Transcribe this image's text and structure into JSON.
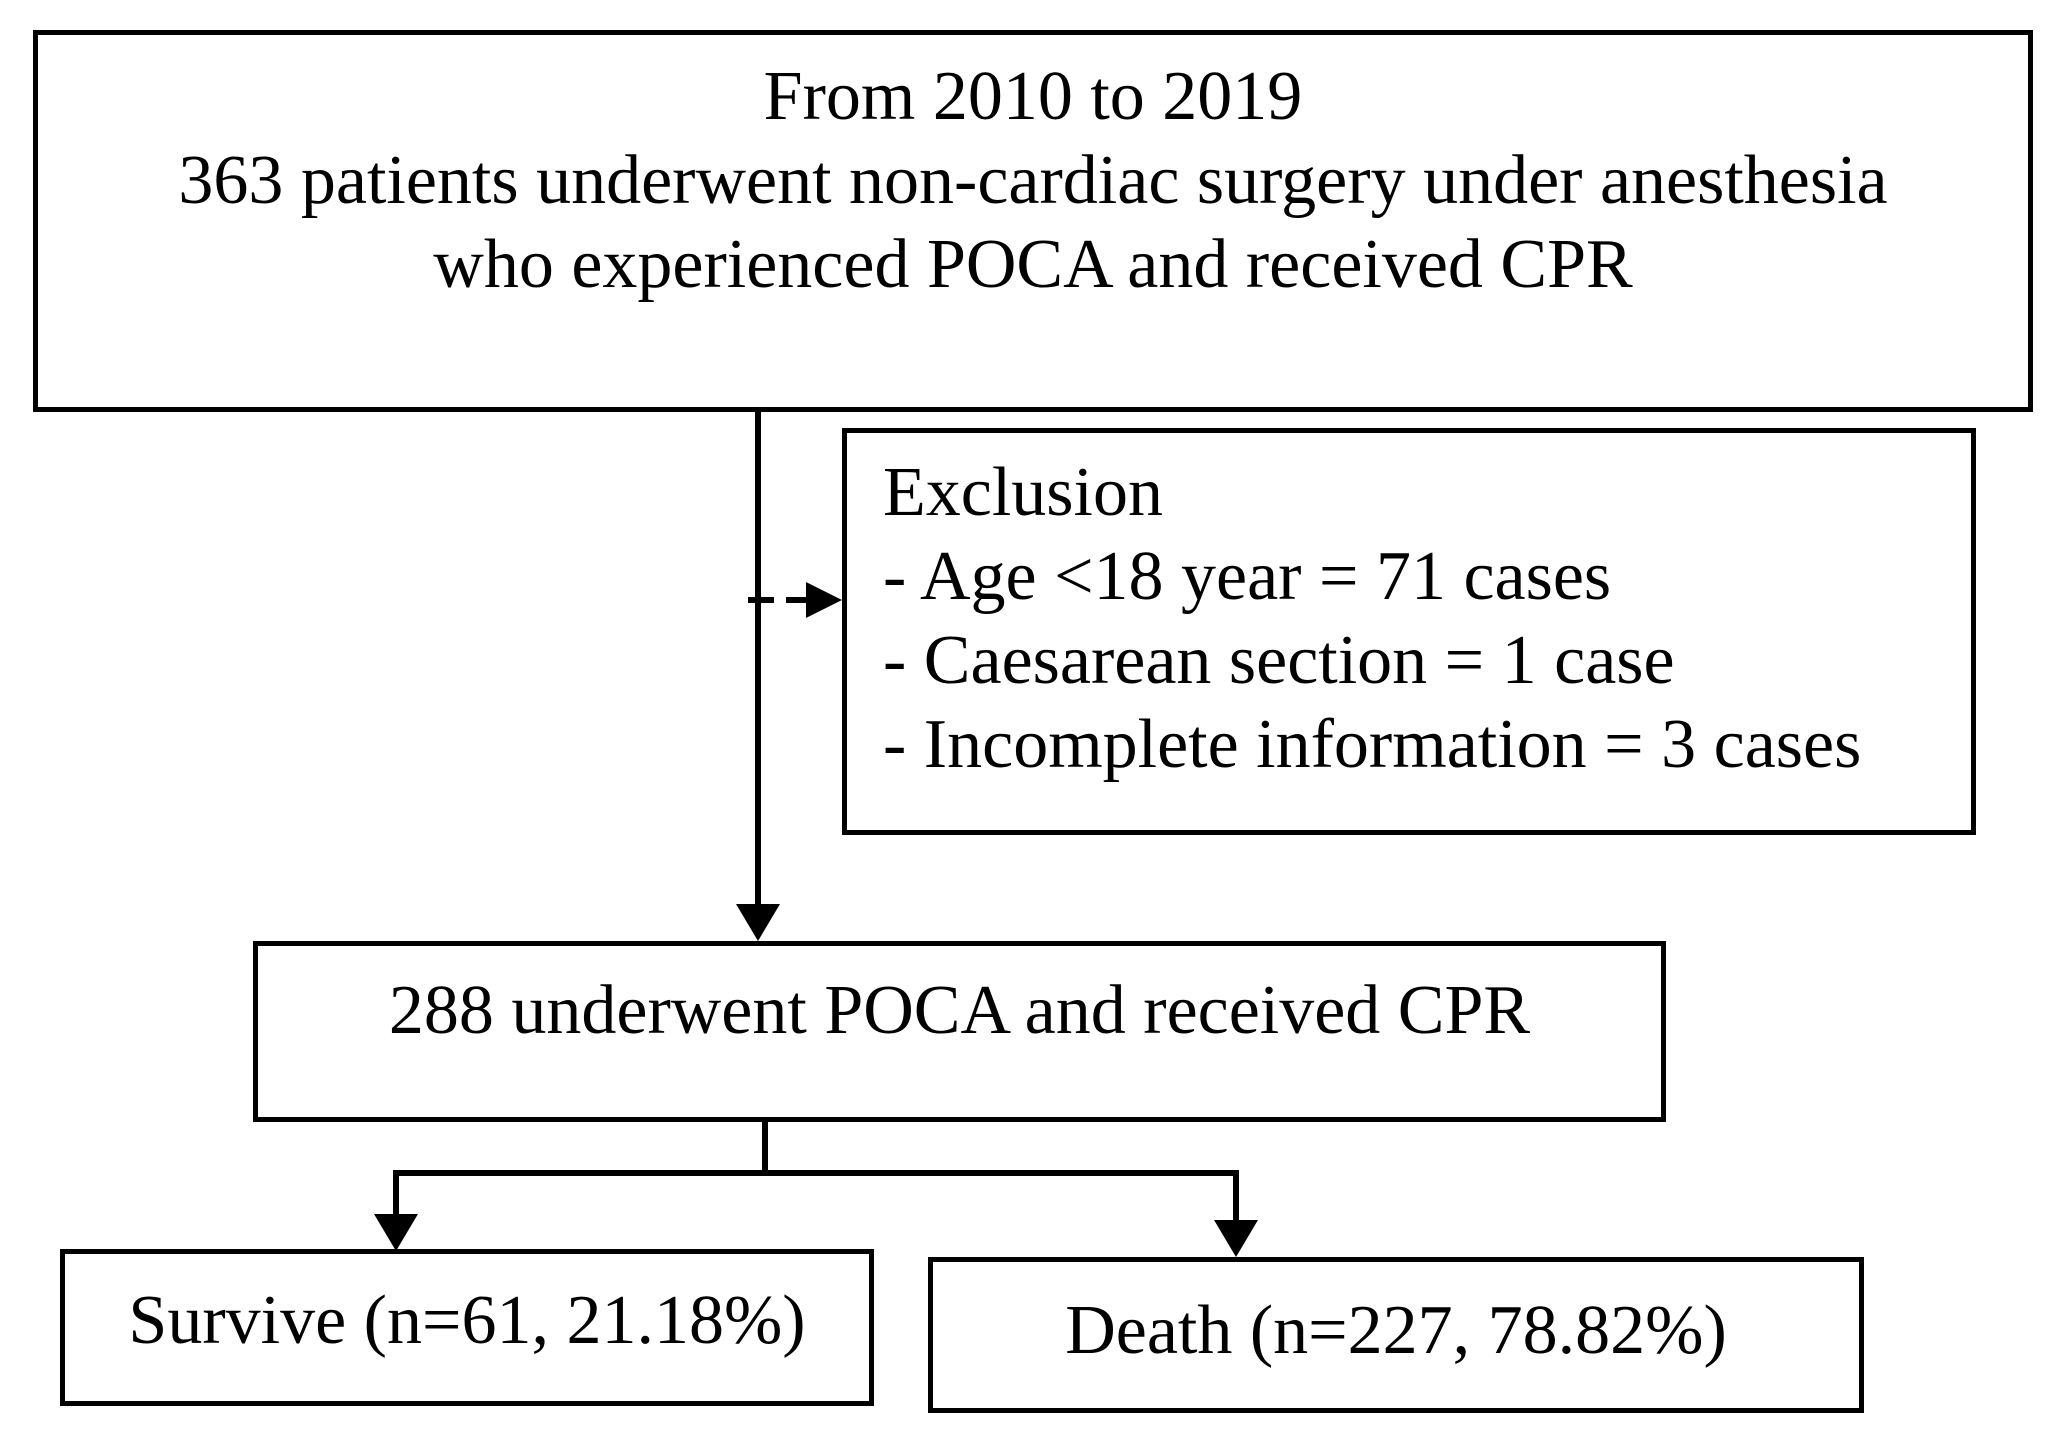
{
  "flowchart": {
    "top_box": {
      "line1": "From 2010 to 2019",
      "line2": "363 patients underwent non-cardiac surgery under anesthesia",
      "line3": "who experienced POCA and received CPR"
    },
    "exclusion_box": {
      "title": "Exclusion",
      "items": [
        "- Age <18 year = 71 cases",
        "- Caesarean section = 1 case",
        "- Incomplete information = 3 cases"
      ]
    },
    "eligible_box": {
      "text": "288 underwent POCA and received CPR"
    },
    "survive_box": {
      "text": "Survive (n=61, 21.18%)"
    },
    "death_box": {
      "text": "Death (n=227, 78.82%)"
    },
    "colors": {
      "line": "#000000",
      "background": "#ffffff"
    }
  }
}
